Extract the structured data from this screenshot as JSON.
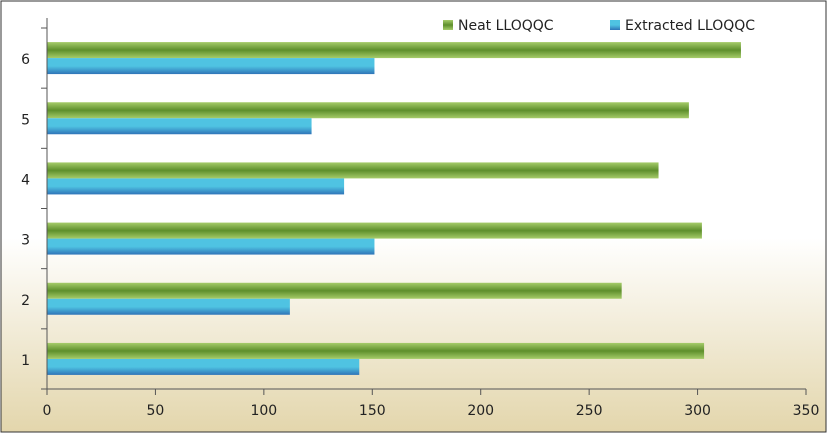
{
  "chart_data": {
    "type": "bar",
    "orientation": "horizontal",
    "categories": [
      "1",
      "2",
      "3",
      "4",
      "5",
      "6"
    ],
    "series": [
      {
        "name": "Neat LLOQQC",
        "values": [
          303,
          265,
          302,
          282,
          296,
          320
        ]
      },
      {
        "name": "Extracted LLOQQC",
        "values": [
          144,
          112,
          151,
          137,
          122,
          151
        ]
      }
    ],
    "x_ticks": [
      "0",
      "50",
      "100",
      "150",
      "200",
      "250",
      "300",
      "350"
    ],
    "xlim": [
      0,
      350
    ],
    "title": "",
    "xlabel": "",
    "ylabel": "",
    "grid": false,
    "legend_position": "top-right",
    "colors": {
      "neat": "#5e8f2c",
      "neat_light": "#a6cc6a",
      "extracted": "#2f74b8",
      "extracted_light": "#4fc3e2",
      "axis": "#555555",
      "background_top": "#ffffff",
      "background_bottom": "#e3d6ac",
      "frame": "#333333"
    }
  }
}
